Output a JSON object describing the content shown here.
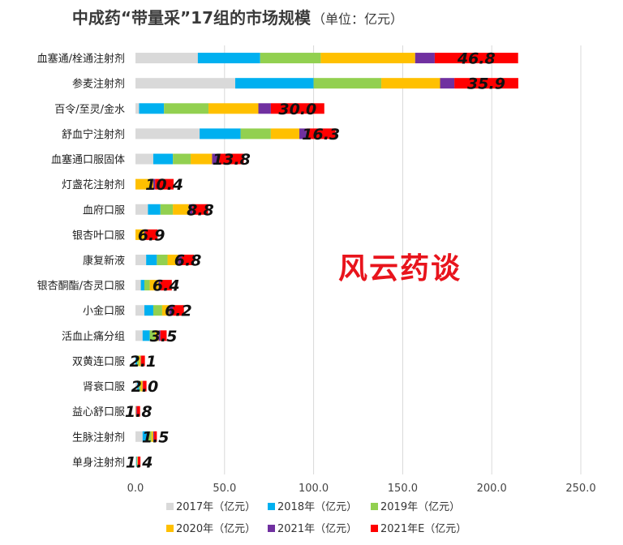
{
  "chart_data": {
    "type": "bar",
    "orientation": "horizontal",
    "stacked": true,
    "title": "中成药“带量采”17组的市场规模",
    "subtitle": "（单位：亿元）",
    "watermark": "风云药谈",
    "categories": [
      "血塞通/栓通注射剂",
      "参麦注射剂",
      "百令/至灵/金水",
      "舒血宁注射剂",
      "血塞通口服固体",
      "灯盏花注射剂",
      "血府口服",
      "银杏叶口服",
      "康复新液",
      "银杏酮酯/杏灵口服",
      "小金口服",
      "活血止痛分组",
      "双黄连口服",
      "肾衰口服",
      "益心舒口服",
      "生脉注射剂",
      "单身注射剂"
    ],
    "data_labels": [
      "46.8",
      "35.9",
      "30.0",
      "16.3",
      "13.8",
      "10.4",
      "8.8",
      "6.9",
      "6.8",
      "6.4",
      "6.2",
      "3.5",
      "2.1",
      "2.0",
      "1.8",
      "1.5",
      "1.4"
    ],
    "series": [
      {
        "name": "2017年（亿元）",
        "color": "#d9d9d9",
        "values": [
          35,
          56,
          2,
          36,
          10,
          0,
          7,
          0,
          6,
          3,
          5,
          4,
          0,
          1,
          0,
          4,
          0.4
        ]
      },
      {
        "name": "2018年（亿元）",
        "color": "#00b0f0",
        "values": [
          35,
          44,
          14,
          23,
          11,
          0,
          7,
          0,
          6,
          2,
          5,
          4,
          1,
          1,
          0,
          3,
          0.3
        ]
      },
      {
        "name": "2019年（亿元）",
        "color": "#92d050",
        "values": [
          34,
          38,
          25,
          17,
          10,
          0,
          7,
          0,
          6,
          3,
          5,
          3,
          1,
          1,
          0,
          2,
          0.3
        ]
      },
      {
        "name": "2020年（亿元）",
        "color": "#ffc000",
        "values": [
          53,
          33,
          28,
          16,
          12,
          10,
          9,
          5,
          6,
          5,
          4,
          2,
          1,
          1,
          0.3,
          1,
          0.3
        ]
      },
      {
        "name": "2021年（亿元）",
        "color": "#7030a0",
        "values": [
          11,
          8,
          7,
          4,
          4,
          1,
          2,
          0.5,
          2,
          1,
          2,
          1,
          0.2,
          0.2,
          0.5,
          0.5,
          0.1
        ]
      },
      {
        "name": "2021年E（亿元）",
        "color": "#ff0000",
        "values": [
          46.8,
          35.9,
          30.0,
          16.3,
          13.8,
          10.4,
          8.8,
          6.9,
          6.8,
          6.4,
          6.2,
          3.5,
          2.1,
          2.0,
          1.8,
          1.5,
          1.4
        ]
      }
    ],
    "xlim": [
      0,
      250
    ],
    "xticks": [
      "0.0",
      "50.0",
      "100.0",
      "150.0",
      "200.0",
      "250.0"
    ],
    "grid": true,
    "legend_position": "bottom"
  }
}
